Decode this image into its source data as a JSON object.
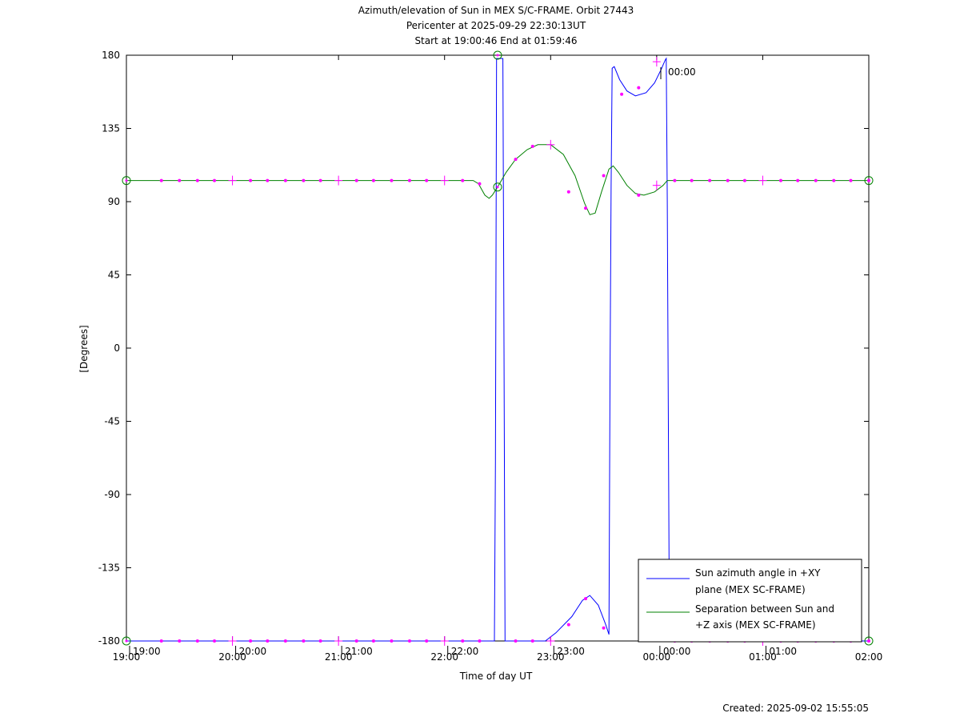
{
  "chart_data": {
    "type": "line",
    "title_lines": [
      "Azimuth/elevation of Sun in MEX S/C-FRAME.  Orbit 27443",
      "Pericenter at 2025-09-29 22:30:13UT",
      "Start at 19:00:46 End at 01:59:46"
    ],
    "xlabel": "Time of day UT",
    "ylabel": "[Degrees]",
    "xlim": [
      0,
      7
    ],
    "ylim": [
      -180,
      180
    ],
    "x_unit": "hours after 19:00 UT",
    "x_ticks": [
      {
        "x": 0,
        "label": "19:00"
      },
      {
        "x": 1,
        "label": "20:00"
      },
      {
        "x": 2,
        "label": "21:00"
      },
      {
        "x": 3,
        "label": "22:00"
      },
      {
        "x": 4,
        "label": "23:00"
      },
      {
        "x": 5,
        "label": "00:00"
      },
      {
        "x": 6,
        "label": "01:00"
      },
      {
        "x": 7,
        "label": "02:00"
      }
    ],
    "y_ticks": [
      {
        "y": 180,
        "label": "180"
      },
      {
        "y": 135,
        "label": "135"
      },
      {
        "y": 90,
        "label": "90"
      },
      {
        "y": 45,
        "label": "45"
      },
      {
        "y": 0,
        "label": "0"
      },
      {
        "y": -45,
        "label": "-45"
      },
      {
        "y": -90,
        "label": "-90"
      },
      {
        "y": -135,
        "label": "-135"
      },
      {
        "y": -180,
        "label": "-180"
      }
    ],
    "hour_annotations": [
      {
        "x": 0,
        "label": "19:00"
      },
      {
        "x": 1,
        "label": "20:00"
      },
      {
        "x": 2,
        "label": "21:00"
      },
      {
        "x": 3,
        "label": "22:00"
      },
      {
        "x": 4,
        "label": "23:00"
      },
      {
        "x": 5,
        "label": "00:00"
      },
      {
        "x": 6,
        "label": "01:00"
      }
    ],
    "series": [
      {
        "name": "Sun azimuth angle in +XY plane (MEX SC-FRAME)",
        "label_lines": [
          "Sun azimuth angle in +XY",
          "plane (MEX SC-FRAME)"
        ],
        "color": "#0000ff",
        "points": [
          [
            0,
            -180
          ],
          [
            3.47,
            -180
          ],
          [
            3.48,
            -70
          ],
          [
            3.49,
            178
          ],
          [
            3.55,
            178
          ],
          [
            3.56,
            0
          ],
          [
            3.57,
            -180
          ],
          [
            3.95,
            -180
          ],
          [
            4.05,
            -175
          ],
          [
            4.2,
            -165
          ],
          [
            4.3,
            -155
          ],
          [
            4.37,
            -152
          ],
          [
            4.45,
            -158
          ],
          [
            4.52,
            -170
          ],
          [
            4.55,
            -176
          ],
          [
            4.56,
            -20
          ],
          [
            4.57,
            100
          ],
          [
            4.58,
            172
          ],
          [
            4.6,
            173
          ],
          [
            4.65,
            165
          ],
          [
            4.72,
            158
          ],
          [
            4.8,
            155
          ],
          [
            4.9,
            157
          ],
          [
            4.98,
            163
          ],
          [
            5.04,
            171
          ],
          [
            5.08,
            177
          ],
          [
            5.09,
            178
          ],
          [
            5.1,
            90
          ],
          [
            5.12,
            -180
          ],
          [
            7,
            -180
          ]
        ]
      },
      {
        "name": "Separation between Sun and +Z axis (MEX SC-FRAME)",
        "label_lines": [
          "Separation between Sun and",
          "+Z axis (MEX SC-FRAME)"
        ],
        "color": "#008000",
        "points": [
          [
            0,
            103
          ],
          [
            3.27,
            103
          ],
          [
            3.32,
            101
          ],
          [
            3.38,
            94
          ],
          [
            3.42,
            92
          ],
          [
            3.45,
            94
          ],
          [
            3.5,
            99
          ],
          [
            3.58,
            108
          ],
          [
            3.67,
            116
          ],
          [
            3.78,
            122
          ],
          [
            3.88,
            125
          ],
          [
            4.0,
            125
          ],
          [
            4.12,
            119
          ],
          [
            4.23,
            106
          ],
          [
            4.32,
            89
          ],
          [
            4.37,
            82
          ],
          [
            4.42,
            83
          ],
          [
            4.48,
            96
          ],
          [
            4.55,
            110
          ],
          [
            4.59,
            112
          ],
          [
            4.64,
            108
          ],
          [
            4.72,
            100
          ],
          [
            4.8,
            95
          ],
          [
            4.88,
            94
          ],
          [
            4.98,
            96
          ],
          [
            5.06,
            100
          ],
          [
            5.1,
            103
          ],
          [
            7,
            103
          ]
        ]
      }
    ],
    "magenta_dots": [
      [
        0.33,
        103
      ],
      [
        0.5,
        103
      ],
      [
        0.67,
        103
      ],
      [
        0.83,
        103
      ],
      [
        1.17,
        103
      ],
      [
        1.33,
        103
      ],
      [
        1.5,
        103
      ],
      [
        1.67,
        103
      ],
      [
        1.83,
        103
      ],
      [
        2.17,
        103
      ],
      [
        2.33,
        103
      ],
      [
        2.5,
        103
      ],
      [
        2.67,
        103
      ],
      [
        2.83,
        103
      ],
      [
        3.17,
        103
      ],
      [
        3.33,
        101
      ],
      [
        3.67,
        116
      ],
      [
        3.83,
        124
      ],
      [
        4.17,
        96
      ],
      [
        4.33,
        86
      ],
      [
        4.5,
        106
      ],
      [
        4.83,
        94
      ],
      [
        5.17,
        103
      ],
      [
        5.33,
        103
      ],
      [
        5.5,
        103
      ],
      [
        5.67,
        103
      ],
      [
        5.83,
        103
      ],
      [
        6.17,
        103
      ],
      [
        6.33,
        103
      ],
      [
        6.5,
        103
      ],
      [
        6.67,
        103
      ],
      [
        6.83,
        103
      ],
      [
        7,
        103
      ],
      [
        0.33,
        -180
      ],
      [
        0.5,
        -180
      ],
      [
        0.67,
        -180
      ],
      [
        0.83,
        -180
      ],
      [
        1.17,
        -180
      ],
      [
        1.33,
        -180
      ],
      [
        1.5,
        -180
      ],
      [
        1.67,
        -180
      ],
      [
        1.83,
        -180
      ],
      [
        2.17,
        -180
      ],
      [
        2.33,
        -180
      ],
      [
        2.5,
        -180
      ],
      [
        2.67,
        -180
      ],
      [
        2.83,
        -180
      ],
      [
        3.17,
        -180
      ],
      [
        3.33,
        -180
      ],
      [
        3.67,
        -180
      ],
      [
        3.83,
        -180
      ],
      [
        4.17,
        -170
      ],
      [
        4.33,
        -154
      ],
      [
        4.5,
        -172
      ],
      [
        4.67,
        156
      ],
      [
        4.83,
        160
      ],
      [
        5.17,
        -180
      ],
      [
        5.33,
        -180
      ],
      [
        5.5,
        -180
      ],
      [
        5.67,
        -180
      ],
      [
        5.83,
        -180
      ],
      [
        6.17,
        -180
      ],
      [
        6.33,
        -180
      ],
      [
        6.5,
        -180
      ],
      [
        6.67,
        -180
      ],
      [
        6.83,
        -180
      ],
      [
        7,
        -180
      ]
    ],
    "hour_plus_markers": [
      [
        1,
        103
      ],
      [
        2,
        103
      ],
      [
        3,
        103
      ],
      [
        4,
        125
      ],
      [
        5,
        100
      ],
      [
        6,
        103
      ],
      [
        1,
        -180
      ],
      [
        2,
        -180
      ],
      [
        3,
        -180
      ],
      [
        4,
        -180
      ],
      [
        5,
        176
      ],
      [
        6,
        -180
      ]
    ],
    "circle_markers": [
      [
        0,
        103
      ],
      [
        0,
        -180
      ],
      [
        3.5,
        99
      ],
      [
        3.5,
        180
      ],
      [
        7,
        103
      ],
      [
        7,
        -180
      ]
    ],
    "annotation": {
      "x": 5.03,
      "y": 176,
      "label": "00:00"
    },
    "legend_position": "lower-right",
    "footer": "Created: 2025-09-02 15:55:05",
    "marker_color": "#ff00ff",
    "frame_color": "#000000"
  }
}
